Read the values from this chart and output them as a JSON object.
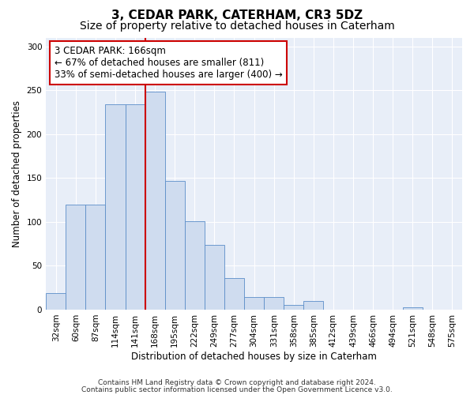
{
  "title": "3, CEDAR PARK, CATERHAM, CR3 5DZ",
  "subtitle": "Size of property relative to detached houses in Caterham",
  "xlabel": "Distribution of detached houses by size in Caterham",
  "ylabel": "Number of detached properties",
  "bar_labels": [
    "32sqm",
    "60sqm",
    "87sqm",
    "114sqm",
    "141sqm",
    "168sqm",
    "195sqm",
    "222sqm",
    "249sqm",
    "277sqm",
    "304sqm",
    "331sqm",
    "358sqm",
    "385sqm",
    "412sqm",
    "439sqm",
    "466sqm",
    "494sqm",
    "521sqm",
    "548sqm",
    "575sqm"
  ],
  "bar_values": [
    19,
    120,
    120,
    234,
    234,
    248,
    147,
    101,
    74,
    36,
    14,
    14,
    5,
    10,
    0,
    0,
    0,
    0,
    3,
    0,
    0
  ],
  "bar_color": "#cfdcef",
  "bar_edge_color": "#5b8dc8",
  "vline_x": 4.5,
  "vline_color": "#cc0000",
  "annotation_text": "3 CEDAR PARK: 166sqm\n← 67% of detached houses are smaller (811)\n33% of semi-detached houses are larger (400) →",
  "annotation_box_color": "white",
  "annotation_box_edge_color": "#cc0000",
  "ylim": [
    0,
    310
  ],
  "yticks": [
    0,
    50,
    100,
    150,
    200,
    250,
    300
  ],
  "footer_line1": "Contains HM Land Registry data © Crown copyright and database right 2024.",
  "footer_line2": "Contains public sector information licensed under the Open Government Licence v3.0.",
  "bg_color": "#e8eef8",
  "grid_color": "#ffffff",
  "title_fontsize": 11,
  "subtitle_fontsize": 10,
  "annotation_fontsize": 8.5,
  "axis_label_fontsize": 8.5,
  "tick_fontsize": 7.5,
  "footer_fontsize": 6.5
}
